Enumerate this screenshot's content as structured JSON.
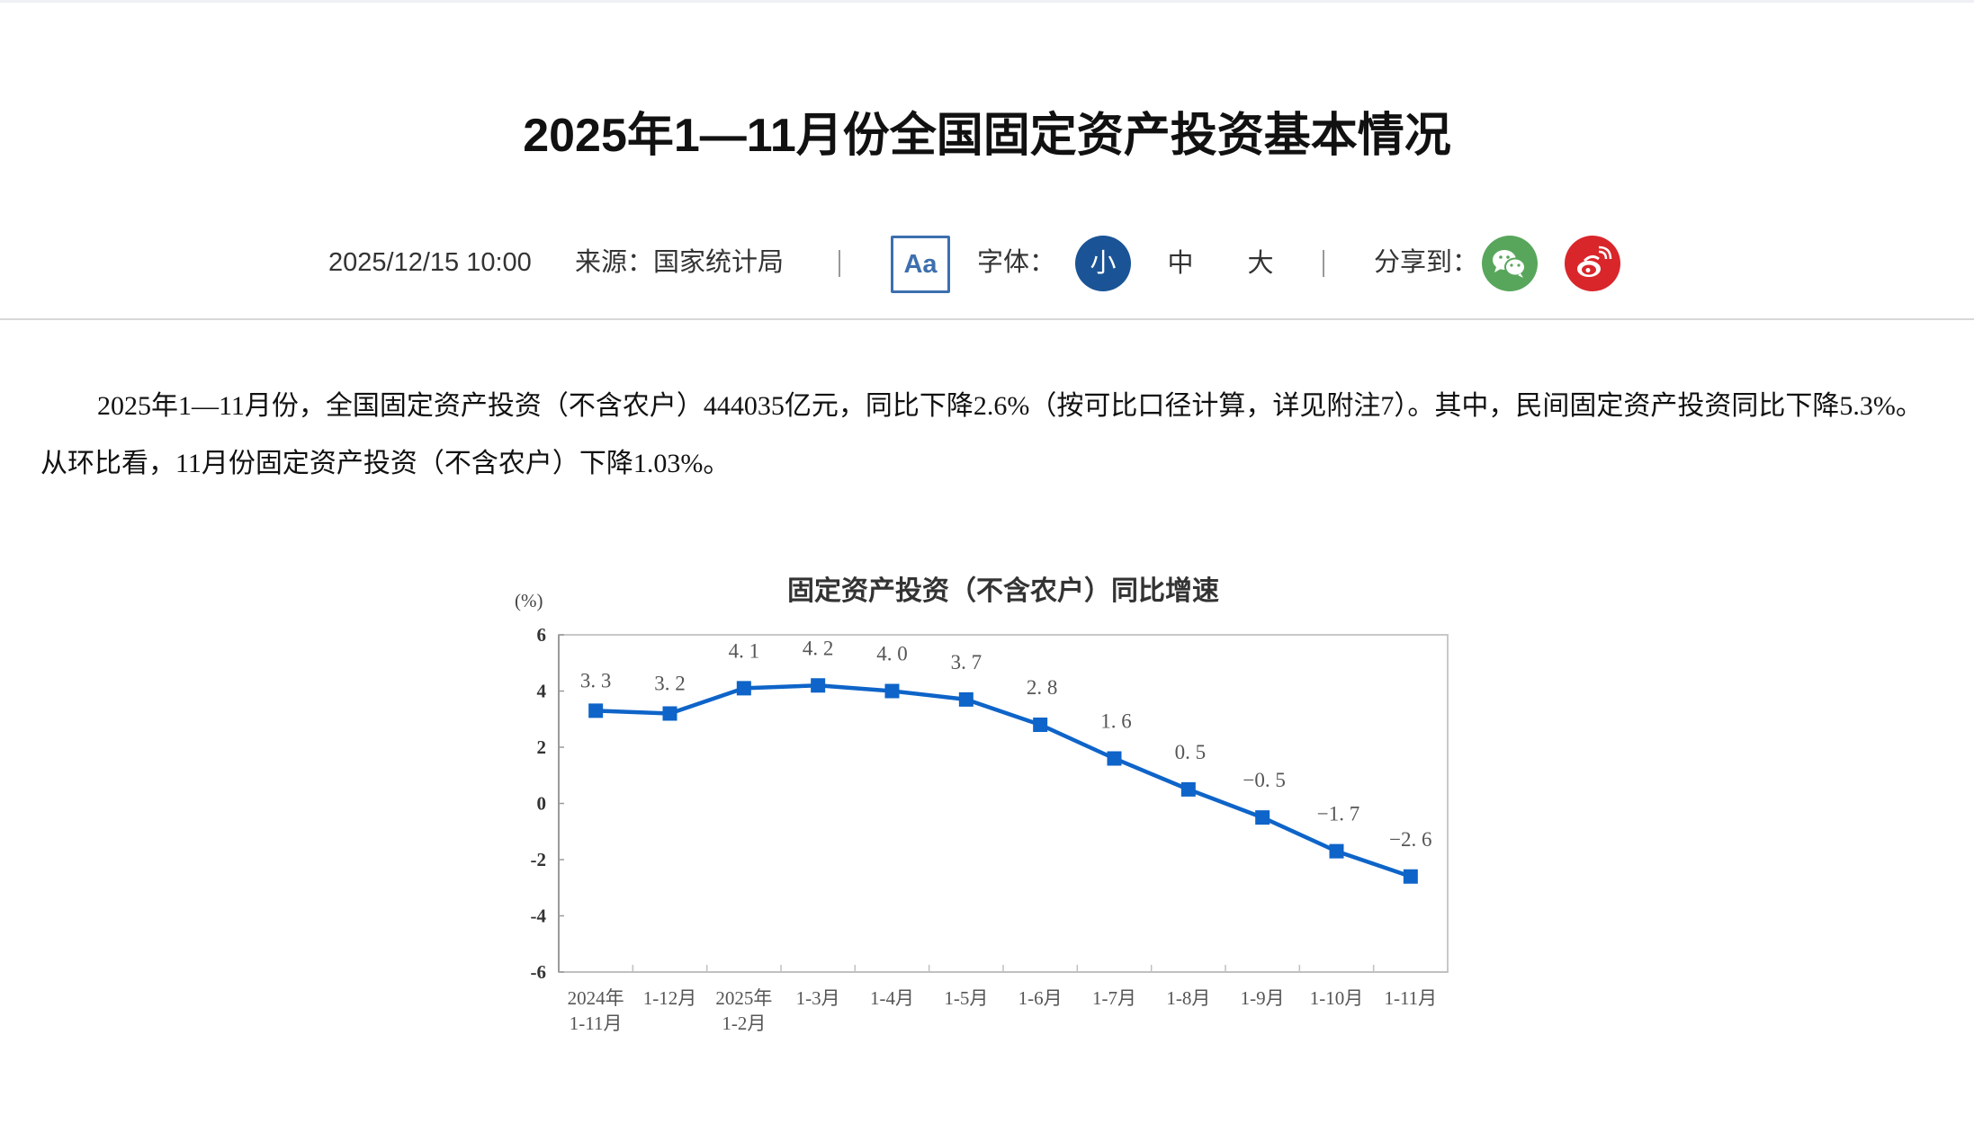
{
  "page": {
    "title": "2025年1—11月份全国固定资产投资基本情况",
    "meta": {
      "datetime": "2025/12/15 10:00",
      "source": "来源：国家统计局",
      "font_toggle_label": "Aa",
      "font_label": "字体：",
      "font_sizes": [
        "小",
        "中",
        "大"
      ],
      "font_size_selected": "小",
      "share_label": "分享到：",
      "share_targets": [
        "wechat-icon",
        "weibo-icon"
      ]
    },
    "paragraph": "2025年1—11月份，全国固定资产投资（不含农户）444035亿元，同比下降2.6%（按可比口径计算，详见附注7）。其中，民间固定资产投资同比下降5.3%。从环比看，11月份固定资产投资（不含农户）下降1.03%。",
    "colors": {
      "accent": "#1a5496",
      "series": "#0e64c8",
      "wechat": "#58a65c",
      "weibo": "#d9262b"
    }
  },
  "chart_data": {
    "type": "line",
    "title": "固定资产投资（不含农户）同比增速",
    "ylabel": "(%)",
    "xlabel": "",
    "ylim": [
      -6,
      6
    ],
    "yticks": [
      6,
      4,
      2,
      0,
      -2,
      -4,
      -6
    ],
    "grid": false,
    "legend": null,
    "categories": [
      "2024年 1-11月",
      "1-12月",
      "2025年 1-2月",
      "1-3月",
      "1-4月",
      "1-5月",
      "1-6月",
      "1-7月",
      "1-8月",
      "1-9月",
      "1-10月",
      "1-11月"
    ],
    "category_lines": [
      [
        "2024年",
        "1-11月"
      ],
      [
        "1-12月"
      ],
      [
        "2025年",
        "1-2月"
      ],
      [
        "1-3月"
      ],
      [
        "1-4月"
      ],
      [
        "1-5月"
      ],
      [
        "1-6月"
      ],
      [
        "1-7月"
      ],
      [
        "1-8月"
      ],
      [
        "1-9月"
      ],
      [
        "1-10月"
      ],
      [
        "1-11月"
      ]
    ],
    "series": [
      {
        "name": "固定资产投资（不含农户）同比增速",
        "values": [
          3.3,
          3.2,
          4.1,
          4.2,
          4.0,
          3.7,
          2.8,
          1.6,
          0.5,
          -0.5,
          -1.7,
          -2.6
        ],
        "labels": [
          "3. 3",
          "3. 2",
          "4. 1",
          "4. 2",
          "4. 0",
          "3. 7",
          "2. 8",
          "1. 6",
          "0. 5",
          "−0. 5",
          "−1. 7",
          "−2. 6"
        ],
        "marker": "square",
        "color": "#0e64c8"
      }
    ]
  }
}
